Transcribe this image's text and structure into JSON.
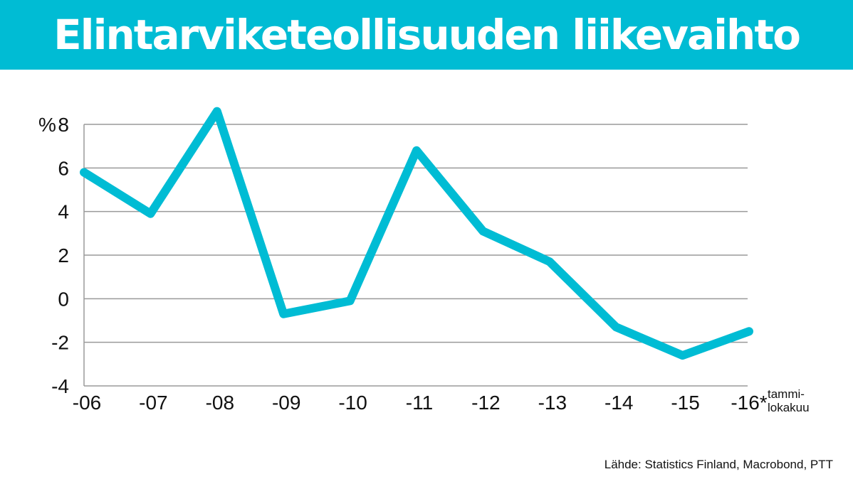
{
  "header": {
    "title": "Elintarviketeollisuuden liikevaihto"
  },
  "colors": {
    "title_bar": "#00bcd4",
    "title_text": "#ffffff",
    "line": "#00bcd4",
    "gridline": "#9a9a9a",
    "text": "#111111"
  },
  "chart_data": {
    "type": "line",
    "title": "Elintarviketeollisuuden liikevaihto",
    "ylabel": "%",
    "xlabel": "",
    "categories": [
      "-06",
      "-07",
      "-08",
      "-09",
      "-10",
      "-11",
      "-12",
      "-13",
      "-14",
      "-15",
      "-16*"
    ],
    "series": [
      {
        "values": [
          5.8,
          3.9,
          8.6,
          -0.7,
          -0.1,
          6.8,
          3.1,
          1.7,
          -1.3,
          -2.6,
          -1.5
        ]
      }
    ],
    "ylim": [
      -4,
      8
    ],
    "yticks": [
      8,
      6,
      4,
      2,
      0,
      -2,
      -4
    ],
    "grid": true,
    "last_category_note_line1": "tammi-",
    "last_category_note_line2": "lokakuu"
  },
  "footer": {
    "source": "Lähde: Statistics Finland, Macrobond, PTT"
  }
}
